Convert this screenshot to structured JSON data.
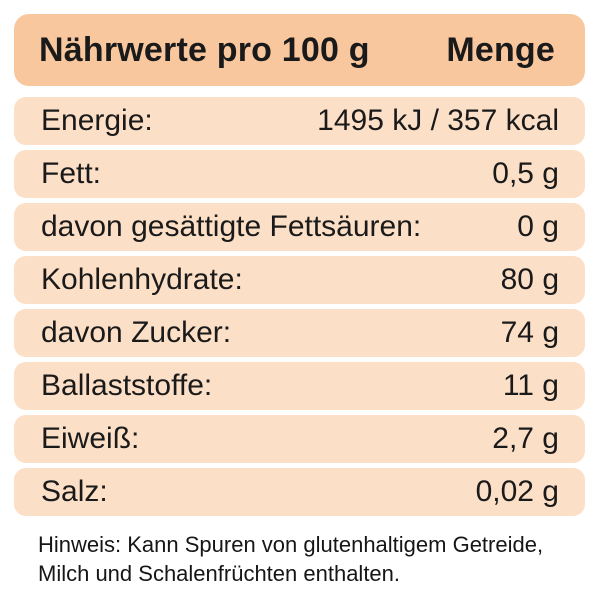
{
  "header": {
    "title": "Nährwerte pro 100 g",
    "amount_label": "Menge"
  },
  "rows": [
    {
      "label": "Energie:",
      "value": "1495 kJ / 357 kcal"
    },
    {
      "label": "Fett:",
      "value": "0,5 g"
    },
    {
      "label": "davon gesättigte Fettsäuren:",
      "value": "0 g"
    },
    {
      "label": "Kohlenhydrate:",
      "value": "80 g"
    },
    {
      "label": "davon Zucker:",
      "value": "74 g"
    },
    {
      "label": "Ballaststoffe:",
      "value": "11 g"
    },
    {
      "label": "Eiweiß:",
      "value": "2,7 g"
    },
    {
      "label": "Salz:",
      "value": "0,02 g"
    }
  ],
  "footer": {
    "note_lines": [
      "Hinweis: Kann Spuren von glutenhaltigem Getreide,",
      "Milch und Schalenfrüchten enthalten."
    ]
  },
  "colors": {
    "header_bg": "#f9c79e",
    "row_bg": "#fcdfc7",
    "text": "#1a1a1a",
    "background": "#ffffff"
  }
}
